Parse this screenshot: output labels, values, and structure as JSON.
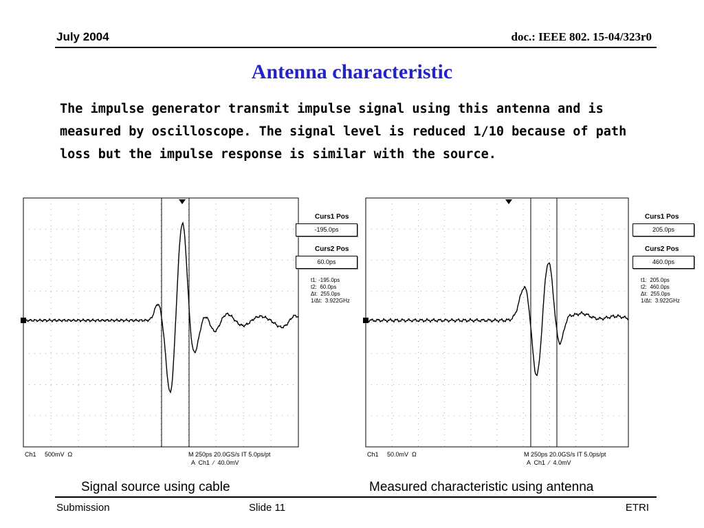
{
  "header": {
    "date": "July 2004",
    "doc_id": "doc.: IEEE 802. 15-04/323r0"
  },
  "title": "Antenna characteristic",
  "body_text": "The impulse generator transmit impulse signal using this antenna and is measured by oscilloscope. The signal level is reduced 1/10 because of path loss but the impulse response is similar with the source.",
  "scopes": [
    {
      "caption": "Signal source using cable",
      "curs1_label": "Curs1 Pos",
      "curs1_value": "-195.0ps",
      "curs2_label": "Curs2 Pos",
      "curs2_value": "60.0ps",
      "measurements": "t1: -195.0ps\nt2:  60.0ps\nΔt:  255.0ps\n1/Δt:  3.922GHz",
      "ch_info": "Ch1     500mV  Ω",
      "timebase": "M 250ps 20.0GS/s IT 5.0ps/pt",
      "trigger": "A  Ch1  ∕  40.0mV",
      "trace_color": "#000000"
    },
    {
      "caption": "Measured characteristic using antenna",
      "curs1_label": "Curs1 Pos",
      "curs1_value": "205.0ps",
      "curs2_label": "Curs2 Pos",
      "curs2_value": "460.0ps",
      "measurements": "t1:  205.0ps\nt2:  460.0ps\nΔt:  255.0ps\n1/Δt:  3.922GHz",
      "ch_info": "Ch1     50.0mV  Ω",
      "timebase": "M 250ps 20.0GS/s IT 5.0ps/pt",
      "trigger": "A  Ch1  ∕  4.0mV",
      "trace_color": "#000000"
    }
  ],
  "footer": {
    "left": "Submission",
    "center": "Slide 11",
    "right": "ETRI"
  }
}
